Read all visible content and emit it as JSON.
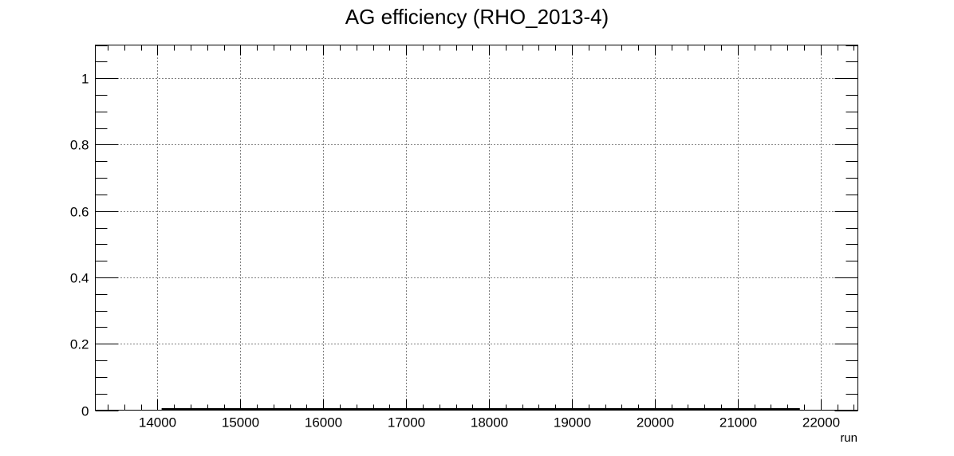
{
  "chart_data": {
    "type": "line",
    "title": "AG efficiency (RHO_2013-4)",
    "xlabel": "run",
    "ylabel": "",
    "xlim": [
      13250,
      22450
    ],
    "ylim": [
      0,
      1.1
    ],
    "x_ticks": [
      "14000",
      "15000",
      "16000",
      "17000",
      "18000",
      "19000",
      "20000",
      "21000",
      "22000"
    ],
    "y_ticks": [
      "0",
      "0.2",
      "0.4",
      "0.6",
      "0.8",
      "1"
    ],
    "grid": true,
    "series": [
      {
        "name": "AG efficiency",
        "x": [
          14050,
          21750
        ],
        "values": [
          0,
          0
        ]
      }
    ]
  }
}
